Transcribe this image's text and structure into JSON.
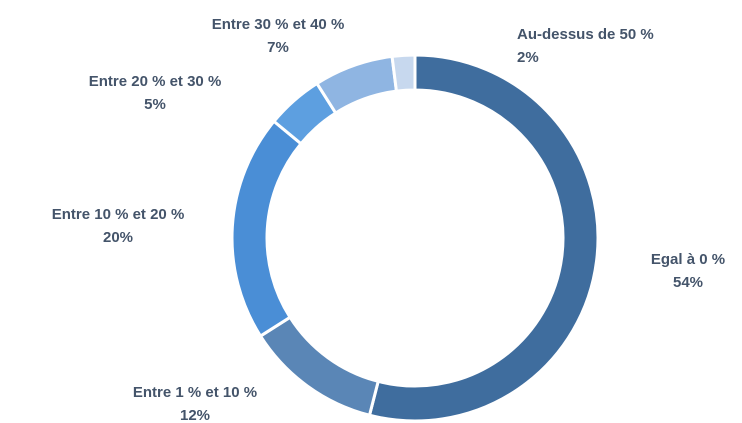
{
  "chart_data": {
    "type": "donut",
    "categories": [
      "Egal à 0 %",
      "Entre 1 % et 10 %",
      "Entre 10 % et 20 %",
      "Entre 20 % et 30 %",
      "Entre 30 % et 40 %",
      "Au-dessus de 50 %"
    ],
    "values": [
      54,
      12,
      20,
      5,
      7,
      2
    ],
    "value_labels": [
      "54%",
      "12%",
      "20%",
      "5%",
      "7%",
      "2%"
    ],
    "colors": [
      "#3f6d9e",
      "#5a86b6",
      "#4a8ed6",
      "#5d9fe0",
      "#8fb5e2",
      "#c7d8ee"
    ]
  }
}
